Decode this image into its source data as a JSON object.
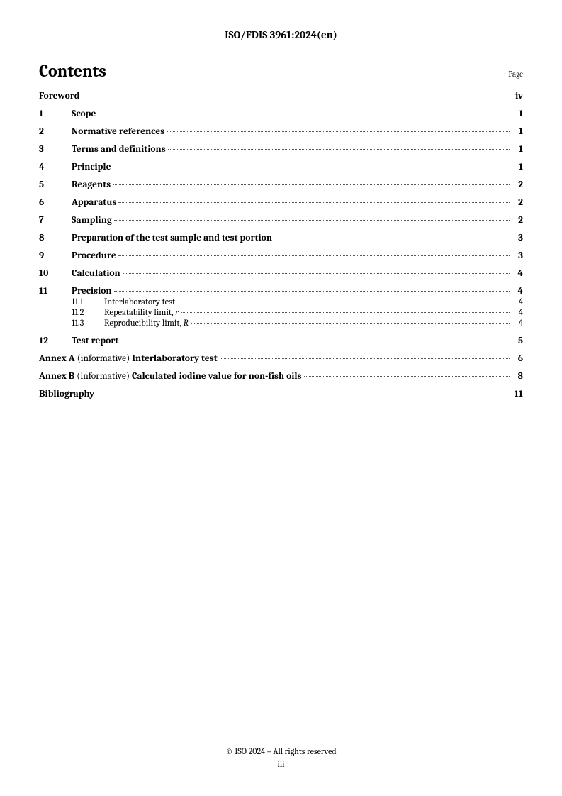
{
  "header": "ISO/FDIS 3961:2024(en)",
  "contents_title": "Contents",
  "page_label": "Page",
  "toc": {
    "foreword": {
      "title": "Foreword",
      "page": "iv"
    },
    "items": [
      {
        "num": "1",
        "title": "Scope",
        "page": "1"
      },
      {
        "num": "2",
        "title": "Normative references",
        "page": "1"
      },
      {
        "num": "3",
        "title": "Terms and definitions",
        "page": "1"
      },
      {
        "num": "4",
        "title": "Principle",
        "page": "1"
      },
      {
        "num": "5",
        "title": "Reagents",
        "page": "2"
      },
      {
        "num": "6",
        "title": "Apparatus",
        "page": "2"
      },
      {
        "num": "7",
        "title": "Sampling",
        "page": "2"
      },
      {
        "num": "8",
        "title": "Preparation of the test sample and test portion",
        "page": "3"
      },
      {
        "num": "9",
        "title": "Procedure",
        "page": "3"
      },
      {
        "num": "10",
        "title": "Calculation",
        "page": "4"
      },
      {
        "num": "11",
        "title": "Precision",
        "page": "4"
      },
      {
        "num": "12",
        "title": "Test report",
        "page": "5"
      }
    ],
    "sub11": [
      {
        "num": "11.1",
        "title": "Interlaboratory test",
        "page": "4"
      },
      {
        "num": "11.2",
        "title_pre": "Repeatability limit, ",
        "title_it": "r",
        "page": "4"
      },
      {
        "num": "11.3",
        "title_pre": "Reproducibility limit, ",
        "title_it": "R",
        "page": "4"
      }
    ],
    "annexA": {
      "prefix": "Annex A",
      "type": " (informative)  ",
      "title": "Interlaboratory test",
      "page": "6"
    },
    "annexB": {
      "prefix": "Annex B",
      "type": " (informative)  ",
      "title": "Calculated iodine value for non-fish oils",
      "page": "8"
    },
    "bibliography": {
      "title": "Bibliography",
      "page": "11"
    }
  },
  "footer": {
    "copyright": "© ISO 2024 – All rights reserved",
    "pagenum": "iii"
  }
}
